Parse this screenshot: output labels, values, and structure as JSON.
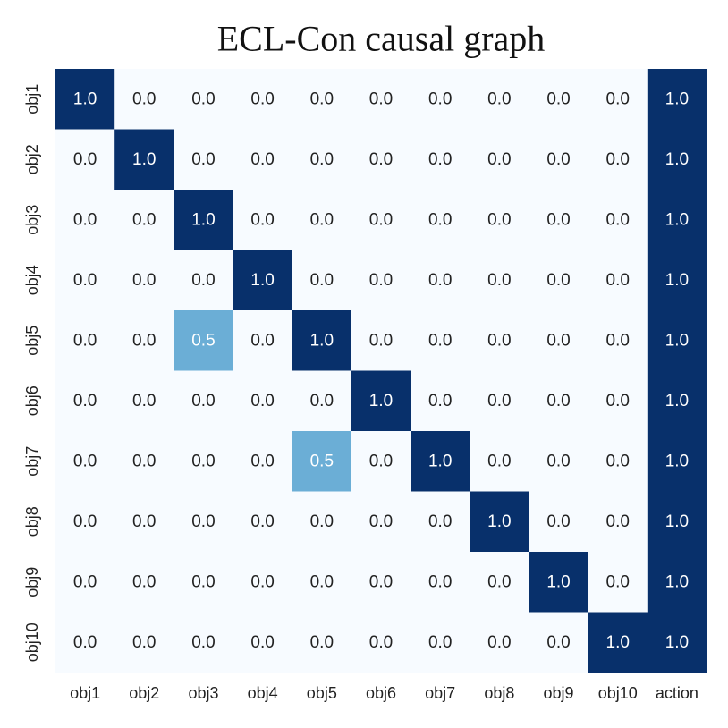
{
  "chart_data": {
    "type": "heatmap",
    "title": "ECL-Con causal graph",
    "x_categories": [
      "obj1",
      "obj2",
      "obj3",
      "obj4",
      "obj5",
      "obj6",
      "obj7",
      "obj8",
      "obj9",
      "obj10",
      "action"
    ],
    "y_categories": [
      "obj1",
      "obj2",
      "obj3",
      "obj4",
      "obj5",
      "obj6",
      "obj7",
      "obj8",
      "obj9",
      "obj10"
    ],
    "values": [
      [
        1,
        0,
        0,
        0,
        0,
        0,
        0,
        0,
        0,
        0,
        1
      ],
      [
        0,
        1,
        0,
        0,
        0,
        0,
        0,
        0,
        0,
        0,
        1
      ],
      [
        0,
        0,
        1,
        0,
        0,
        0,
        0,
        0,
        0,
        0,
        1
      ],
      [
        0,
        0,
        0,
        1,
        0,
        0,
        0,
        0,
        0,
        0,
        1
      ],
      [
        0,
        0,
        0.5,
        0,
        1,
        0,
        0,
        0,
        0,
        0,
        1
      ],
      [
        0,
        0,
        0,
        0,
        0,
        1,
        0,
        0,
        0,
        0,
        1
      ],
      [
        0,
        0,
        0,
        0,
        0.5,
        0,
        1,
        0,
        0,
        0,
        1
      ],
      [
        0,
        0,
        0,
        0,
        0,
        0,
        0,
        1,
        0,
        0,
        1
      ],
      [
        0,
        0,
        0,
        0,
        0,
        0,
        0,
        0,
        1,
        0,
        1
      ],
      [
        0,
        0,
        0,
        0,
        0,
        0,
        0,
        0,
        0,
        1,
        1
      ]
    ],
    "value_labels": [
      [
        "1.0",
        "0.0",
        "0.0",
        "0.0",
        "0.0",
        "0.0",
        "0.0",
        "0.0",
        "0.0",
        "0.0",
        "1.0"
      ],
      [
        "0.0",
        "1.0",
        "0.0",
        "0.0",
        "0.0",
        "0.0",
        "0.0",
        "0.0",
        "0.0",
        "0.0",
        "1.0"
      ],
      [
        "0.0",
        "0.0",
        "1.0",
        "0.0",
        "0.0",
        "0.0",
        "0.0",
        "0.0",
        "0.0",
        "0.0",
        "1.0"
      ],
      [
        "0.0",
        "0.0",
        "0.0",
        "1.0",
        "0.0",
        "0.0",
        "0.0",
        "0.0",
        "0.0",
        "0.0",
        "1.0"
      ],
      [
        "0.0",
        "0.0",
        "0.5",
        "0.0",
        "1.0",
        "0.0",
        "0.0",
        "0.0",
        "0.0",
        "0.0",
        "1.0"
      ],
      [
        "0.0",
        "0.0",
        "0.0",
        "0.0",
        "0.0",
        "1.0",
        "0.0",
        "0.0",
        "0.0",
        "0.0",
        "1.0"
      ],
      [
        "0.0",
        "0.0",
        "0.0",
        "0.0",
        "0.5",
        "0.0",
        "1.0",
        "0.0",
        "0.0",
        "0.0",
        "1.0"
      ],
      [
        "0.0",
        "0.0",
        "0.0",
        "0.0",
        "0.0",
        "0.0",
        "0.0",
        "1.0",
        "0.0",
        "0.0",
        "1.0"
      ],
      [
        "0.0",
        "0.0",
        "0.0",
        "0.0",
        "0.0",
        "0.0",
        "0.0",
        "0.0",
        "1.0",
        "0.0",
        "1.0"
      ],
      [
        "0.0",
        "0.0",
        "0.0",
        "0.0",
        "0.0",
        "0.0",
        "0.0",
        "0.0",
        "0.0",
        "1.0",
        "1.0"
      ]
    ],
    "vlim": [
      0,
      1
    ],
    "cmap": [
      "#f7fbff",
      "#6baed6",
      "#08306b"
    ]
  }
}
